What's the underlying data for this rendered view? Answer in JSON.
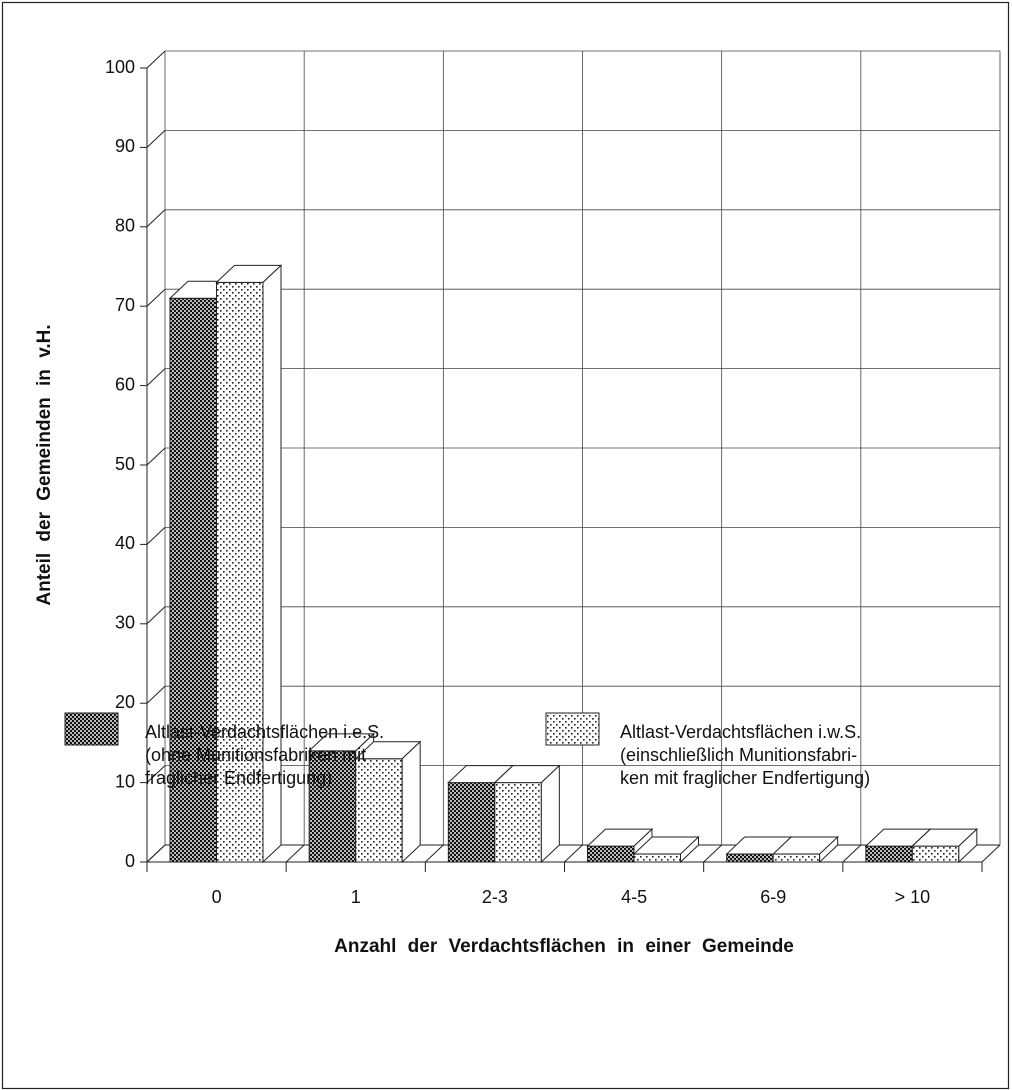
{
  "chart_data": {
    "type": "bar3d",
    "x_label": "Anzahl der Verdachtsflächen in einer Gemeinde",
    "y_label": "Anteil der Gemeinden in v.H.",
    "categories": [
      "0",
      "1",
      "2-3",
      "4-5",
      "6-9",
      "> 10"
    ],
    "series": [
      {
        "name": "Altlast-Verdachtsflächen i.e.S.",
        "description": [
          "(ohne Munitionsfabriken mit",
          "fraglicher Endfertigung)"
        ],
        "pattern": "crosshatch",
        "color": "#222222",
        "values": [
          71,
          14,
          10,
          2,
          1,
          2
        ]
      },
      {
        "name": "Altlast-Verdachtsflächen i.w.S.",
        "description": [
          "(einschließlich Munitionsfabri-",
          "ken mit fraglicher Endfertigung)"
        ],
        "pattern": "dots",
        "color": "#222222",
        "values": [
          73,
          13,
          10,
          1,
          1,
          2
        ]
      }
    ],
    "ylim": [
      0,
      100
    ],
    "yticks": [
      0,
      10,
      20,
      30,
      40,
      50,
      60,
      70,
      80,
      90,
      100
    ],
    "grid": true
  }
}
